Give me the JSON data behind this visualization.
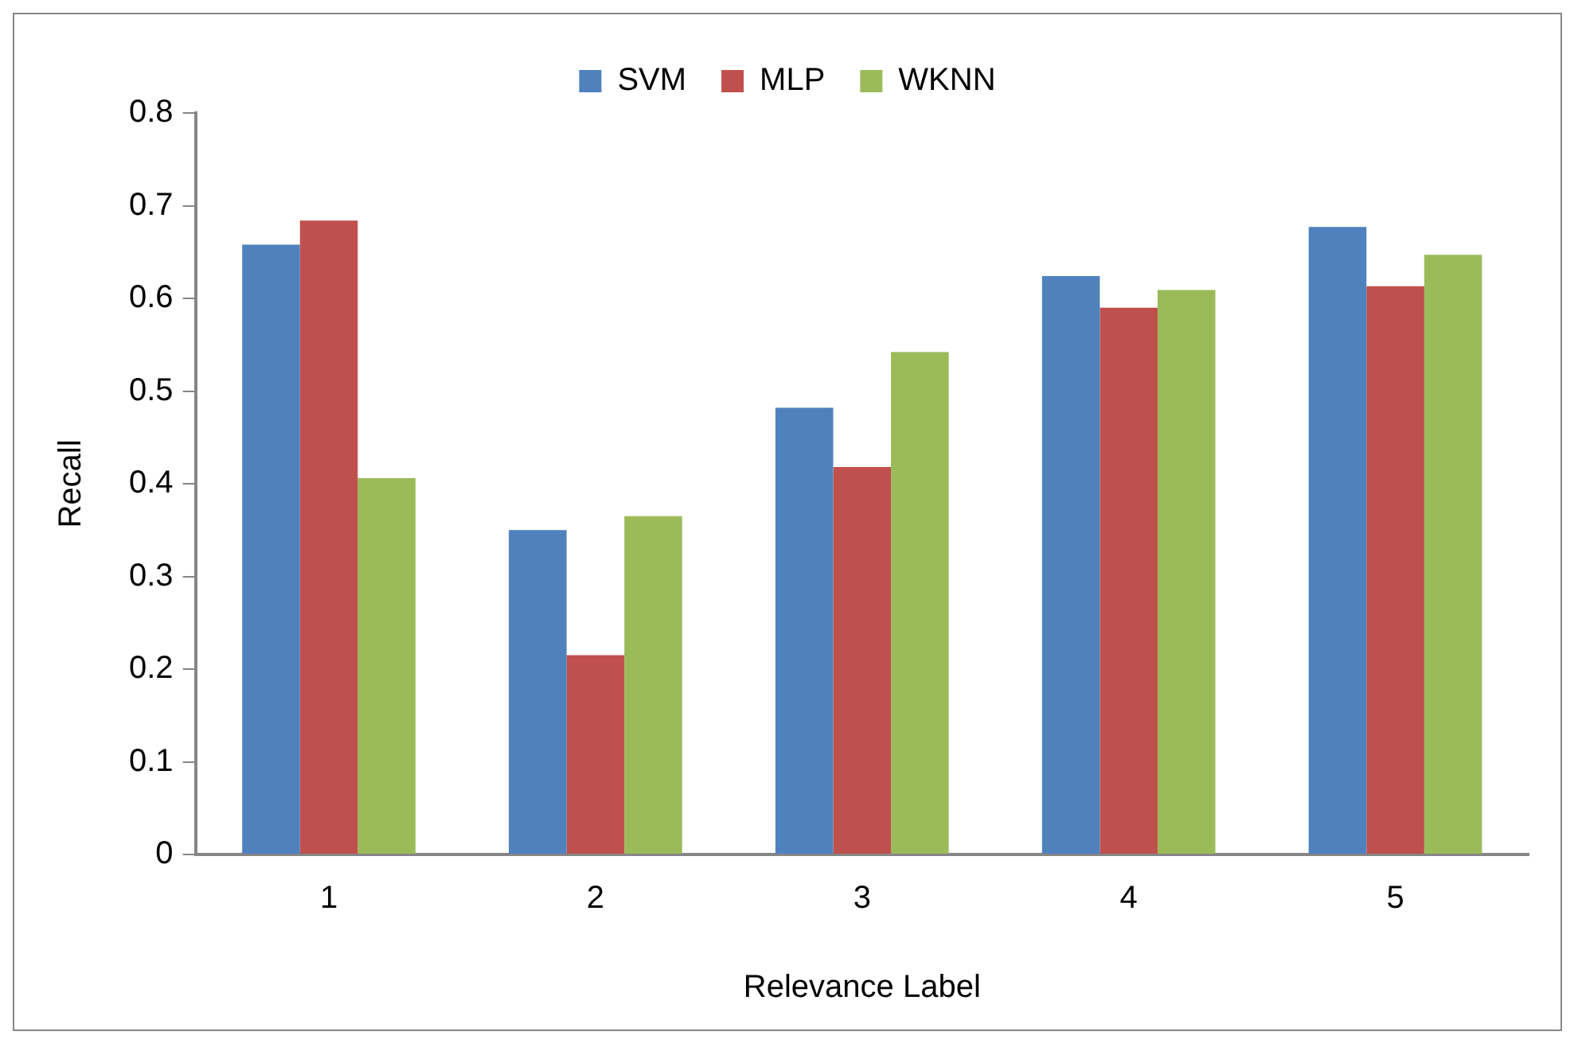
{
  "chart_data": {
    "type": "bar",
    "xlabel": "Relevance Label",
    "ylabel": "Recall",
    "categories": [
      "1",
      "2",
      "3",
      "4",
      "5"
    ],
    "series": [
      {
        "name": "SVM",
        "color": "#4f81bd",
        "values": [
          0.658,
          0.35,
          0.482,
          0.624,
          0.677
        ]
      },
      {
        "name": "MLP",
        "color": "#c0504d",
        "values": [
          0.684,
          0.215,
          0.418,
          0.59,
          0.613
        ]
      },
      {
        "name": "WKNN",
        "color": "#9bbb59",
        "values": [
          0.406,
          0.365,
          0.542,
          0.609,
          0.647
        ]
      }
    ],
    "ylim": [
      0,
      0.8
    ],
    "yticks": [
      0,
      0.1,
      0.2,
      0.3,
      0.4,
      0.5,
      0.6,
      0.7,
      0.8
    ],
    "grid": false,
    "legend": "top"
  }
}
